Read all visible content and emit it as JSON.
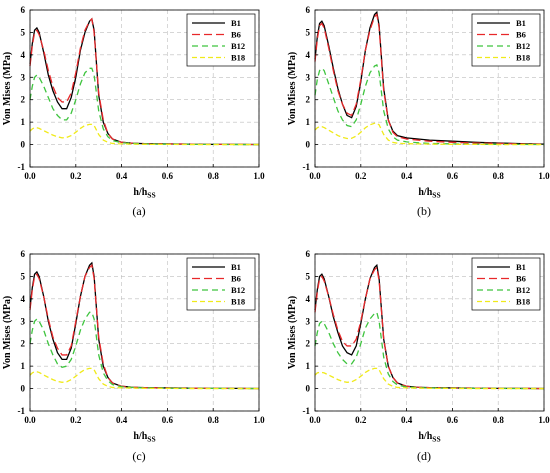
{
  "chart_data": [
    {
      "type": "line",
      "panel_label": "(a)",
      "xlabel": "h/h",
      "xlabel_sub": "SS",
      "ylabel": "Von Mises (MPa)",
      "xlim": [
        0,
        1.0
      ],
      "ylim": [
        -1,
        6
      ],
      "x_ticks": [
        "0.0",
        "0.2",
        "0.4",
        "0.6",
        "0.8",
        "1.0"
      ],
      "y_ticks": [
        "-1",
        "0",
        "1",
        "2",
        "3",
        "4",
        "5",
        "6"
      ],
      "grid": true,
      "legend": "top-right",
      "x": [
        0,
        0.01,
        0.02,
        0.03,
        0.04,
        0.06,
        0.08,
        0.1,
        0.12,
        0.14,
        0.16,
        0.18,
        0.2,
        0.22,
        0.24,
        0.26,
        0.27,
        0.28,
        0.3,
        0.32,
        0.34,
        0.36,
        0.4,
        0.45,
        0.5,
        0.6,
        0.7,
        0.8,
        0.9,
        1.0
      ],
      "series": [
        {
          "name": "B1",
          "color": "#000000",
          "dash": "solid",
          "values": [
            3.6,
            4.5,
            5.1,
            5.2,
            5.0,
            4.1,
            3.1,
            2.4,
            1.9,
            1.6,
            1.6,
            2.1,
            3.0,
            4.2,
            5.0,
            5.5,
            5.6,
            5.1,
            2.2,
            1.0,
            0.5,
            0.25,
            0.1,
            0.06,
            0.04,
            0.03,
            0.02,
            0.01,
            0.01,
            0.0
          ]
        },
        {
          "name": "B6",
          "color": "#e8282a",
          "dash": "8 4",
          "values": [
            3.5,
            4.4,
            5.0,
            5.1,
            4.9,
            4.2,
            3.3,
            2.6,
            2.1,
            1.9,
            1.9,
            2.3,
            3.2,
            4.3,
            5.1,
            5.5,
            5.6,
            5.0,
            2.3,
            1.1,
            0.5,
            0.25,
            0.1,
            0.06,
            0.04,
            0.03,
            0.02,
            0.01,
            0.01,
            0.0
          ]
        },
        {
          "name": "B12",
          "color": "#3ec43e",
          "dash": "6 4",
          "values": [
            2.0,
            2.6,
            3.0,
            3.1,
            3.0,
            2.6,
            2.1,
            1.6,
            1.3,
            1.1,
            1.1,
            1.4,
            2.0,
            2.7,
            3.2,
            3.4,
            3.4,
            3.1,
            1.5,
            0.7,
            0.35,
            0.18,
            0.08,
            0.05,
            0.03,
            0.02,
            0.01,
            0.01,
            0.0,
            0.0
          ]
        },
        {
          "name": "B18",
          "color": "#f0ea1a",
          "dash": "5 3",
          "values": [
            0.6,
            0.7,
            0.75,
            0.75,
            0.72,
            0.62,
            0.52,
            0.42,
            0.35,
            0.3,
            0.32,
            0.4,
            0.55,
            0.72,
            0.85,
            0.9,
            0.9,
            0.85,
            0.45,
            0.2,
            0.1,
            0.05,
            0.03,
            0.02,
            0.01,
            0.01,
            0.0,
            0.0,
            0.0,
            0.0
          ]
        }
      ]
    },
    {
      "type": "line",
      "panel_label": "(b)",
      "xlabel": "h/h",
      "xlabel_sub": "SS",
      "ylabel": "Von Mises (MPa)",
      "xlim": [
        0,
        1.0
      ],
      "ylim": [
        -1,
        6
      ],
      "x_ticks": [
        "0.0",
        "0.2",
        "0.4",
        "0.6",
        "0.8",
        "1.0"
      ],
      "y_ticks": [
        "-1",
        "0",
        "1",
        "2",
        "3",
        "4",
        "5",
        "6"
      ],
      "grid": true,
      "legend": "top-right",
      "x": [
        0,
        0.01,
        0.02,
        0.03,
        0.04,
        0.06,
        0.08,
        0.1,
        0.12,
        0.14,
        0.16,
        0.18,
        0.2,
        0.22,
        0.24,
        0.26,
        0.27,
        0.28,
        0.3,
        0.32,
        0.34,
        0.36,
        0.4,
        0.45,
        0.5,
        0.6,
        0.7,
        0.8,
        0.9,
        1.0
      ],
      "series": [
        {
          "name": "B1",
          "color": "#000000",
          "dash": "solid",
          "values": [
            3.8,
            4.8,
            5.4,
            5.5,
            5.3,
            4.4,
            3.4,
            2.5,
            1.8,
            1.3,
            1.2,
            1.7,
            2.8,
            4.2,
            5.2,
            5.8,
            5.9,
            5.3,
            2.5,
            1.1,
            0.6,
            0.4,
            0.3,
            0.25,
            0.2,
            0.15,
            0.1,
            0.07,
            0.04,
            0.02
          ]
        },
        {
          "name": "B6",
          "color": "#e8282a",
          "dash": "8 4",
          "values": [
            3.7,
            4.7,
            5.3,
            5.4,
            5.2,
            4.3,
            3.3,
            2.4,
            1.8,
            1.4,
            1.3,
            1.8,
            2.9,
            4.2,
            5.1,
            5.7,
            5.8,
            5.2,
            2.4,
            1.1,
            0.55,
            0.35,
            0.25,
            0.2,
            0.15,
            0.1,
            0.07,
            0.05,
            0.03,
            0.02
          ]
        },
        {
          "name": "B12",
          "color": "#3ec43e",
          "dash": "6 4",
          "values": [
            2.2,
            2.9,
            3.3,
            3.4,
            3.3,
            2.7,
            2.1,
            1.5,
            1.1,
            0.85,
            0.8,
            1.1,
            1.8,
            2.6,
            3.2,
            3.5,
            3.55,
            3.2,
            1.5,
            0.7,
            0.35,
            0.2,
            0.12,
            0.08,
            0.05,
            0.03,
            0.02,
            0.01,
            0.01,
            0.0
          ]
        },
        {
          "name": "B18",
          "color": "#f0ea1a",
          "dash": "5 3",
          "values": [
            0.65,
            0.75,
            0.8,
            0.8,
            0.76,
            0.64,
            0.52,
            0.4,
            0.32,
            0.27,
            0.28,
            0.38,
            0.55,
            0.75,
            0.88,
            0.95,
            0.95,
            0.88,
            0.45,
            0.2,
            0.1,
            0.06,
            0.04,
            0.03,
            0.02,
            0.01,
            0.01,
            0.0,
            0.0,
            0.0
          ]
        }
      ]
    },
    {
      "type": "line",
      "panel_label": "(c)",
      "xlabel": "h/h",
      "xlabel_sub": "SS",
      "ylabel": "Von Mises (MPa)",
      "xlim": [
        0,
        1.0
      ],
      "ylim": [
        -1,
        6
      ],
      "x_ticks": [
        "0.0",
        "0.2",
        "0.4",
        "0.6",
        "0.8",
        "1.0"
      ],
      "y_ticks": [
        "-1",
        "0",
        "1",
        "2",
        "3",
        "4",
        "5",
        "6"
      ],
      "grid": true,
      "legend": "top-right",
      "x": [
        0,
        0.01,
        0.02,
        0.03,
        0.04,
        0.06,
        0.08,
        0.1,
        0.12,
        0.14,
        0.16,
        0.18,
        0.2,
        0.22,
        0.24,
        0.26,
        0.27,
        0.28,
        0.3,
        0.32,
        0.34,
        0.36,
        0.4,
        0.45,
        0.5,
        0.6,
        0.7,
        0.8,
        0.9,
        1.0
      ],
      "series": [
        {
          "name": "B1",
          "color": "#000000",
          "dash": "solid",
          "values": [
            3.6,
            4.5,
            5.1,
            5.2,
            5.0,
            4.1,
            3.0,
            2.2,
            1.6,
            1.3,
            1.3,
            1.8,
            2.9,
            4.1,
            5.0,
            5.5,
            5.6,
            5.0,
            2.2,
            1.0,
            0.5,
            0.25,
            0.1,
            0.06,
            0.04,
            0.03,
            0.02,
            0.01,
            0.01,
            0.0
          ]
        },
        {
          "name": "B6",
          "color": "#e8282a",
          "dash": "8 4",
          "values": [
            3.5,
            4.4,
            5.0,
            5.1,
            4.9,
            4.1,
            3.1,
            2.3,
            1.8,
            1.5,
            1.5,
            1.9,
            3.0,
            4.1,
            5.0,
            5.4,
            5.5,
            4.9,
            2.3,
            1.1,
            0.5,
            0.25,
            0.1,
            0.06,
            0.04,
            0.03,
            0.02,
            0.01,
            0.01,
            0.0
          ]
        },
        {
          "name": "B12",
          "color": "#3ec43e",
          "dash": "6 4",
          "values": [
            2.0,
            2.6,
            3.0,
            3.1,
            3.0,
            2.6,
            2.0,
            1.5,
            1.1,
            0.95,
            1.0,
            1.3,
            1.9,
            2.6,
            3.1,
            3.4,
            3.4,
            3.1,
            1.5,
            0.7,
            0.35,
            0.18,
            0.08,
            0.05,
            0.03,
            0.02,
            0.01,
            0.01,
            0.0,
            0.0
          ]
        },
        {
          "name": "B18",
          "color": "#f0ea1a",
          "dash": "5 3",
          "values": [
            0.6,
            0.7,
            0.75,
            0.75,
            0.72,
            0.6,
            0.5,
            0.4,
            0.32,
            0.28,
            0.3,
            0.4,
            0.55,
            0.72,
            0.85,
            0.9,
            0.9,
            0.84,
            0.44,
            0.2,
            0.1,
            0.05,
            0.03,
            0.02,
            0.01,
            0.01,
            0.0,
            0.0,
            0.0,
            0.0
          ]
        }
      ]
    },
    {
      "type": "line",
      "panel_label": "(d)",
      "xlabel": "h/h",
      "xlabel_sub": "SS",
      "ylabel": "Von Mises (MPa)",
      "xlim": [
        0,
        1.0
      ],
      "ylim": [
        -1,
        6
      ],
      "x_ticks": [
        "0.0",
        "0.2",
        "0.4",
        "0.6",
        "0.8",
        "1.0"
      ],
      "y_ticks": [
        "-1",
        "0",
        "1",
        "2",
        "3",
        "4",
        "5",
        "6"
      ],
      "grid": true,
      "legend": "top-right",
      "x": [
        0,
        0.01,
        0.02,
        0.03,
        0.04,
        0.06,
        0.08,
        0.1,
        0.12,
        0.14,
        0.16,
        0.18,
        0.2,
        0.22,
        0.24,
        0.26,
        0.27,
        0.28,
        0.3,
        0.32,
        0.34,
        0.36,
        0.4,
        0.45,
        0.5,
        0.6,
        0.7,
        0.8,
        0.9,
        1.0
      ],
      "series": [
        {
          "name": "B1",
          "color": "#000000",
          "dash": "solid",
          "values": [
            3.5,
            4.4,
            5.0,
            5.1,
            4.9,
            4.1,
            3.2,
            2.5,
            1.9,
            1.6,
            1.5,
            1.9,
            2.9,
            4.0,
            4.9,
            5.4,
            5.5,
            4.9,
            2.2,
            1.0,
            0.5,
            0.25,
            0.1,
            0.06,
            0.04,
            0.03,
            0.02,
            0.01,
            0.01,
            0.0
          ]
        },
        {
          "name": "B6",
          "color": "#e8282a",
          "dash": "8 4",
          "values": [
            3.4,
            4.3,
            4.9,
            5.0,
            4.8,
            4.1,
            3.3,
            2.6,
            2.1,
            1.9,
            1.9,
            2.2,
            3.0,
            4.0,
            4.9,
            5.3,
            5.4,
            4.8,
            2.2,
            1.0,
            0.5,
            0.25,
            0.1,
            0.06,
            0.04,
            0.03,
            0.02,
            0.01,
            0.01,
            0.0
          ]
        },
        {
          "name": "B12",
          "color": "#3ec43e",
          "dash": "6 4",
          "values": [
            1.9,
            2.5,
            2.9,
            3.0,
            2.9,
            2.5,
            2.0,
            1.6,
            1.3,
            1.1,
            1.1,
            1.4,
            2.0,
            2.7,
            3.1,
            3.35,
            3.4,
            3.0,
            1.4,
            0.65,
            0.32,
            0.16,
            0.07,
            0.04,
            0.03,
            0.02,
            0.01,
            0.01,
            0.0,
            0.0
          ]
        },
        {
          "name": "B18",
          "color": "#f0ea1a",
          "dash": "5 3",
          "values": [
            0.6,
            0.7,
            0.72,
            0.72,
            0.7,
            0.6,
            0.5,
            0.4,
            0.32,
            0.28,
            0.3,
            0.4,
            0.55,
            0.72,
            0.84,
            0.9,
            0.9,
            0.84,
            0.44,
            0.2,
            0.1,
            0.05,
            0.03,
            0.02,
            0.01,
            0.01,
            0.0,
            0.0,
            0.0,
            0.0
          ]
        }
      ]
    }
  ]
}
